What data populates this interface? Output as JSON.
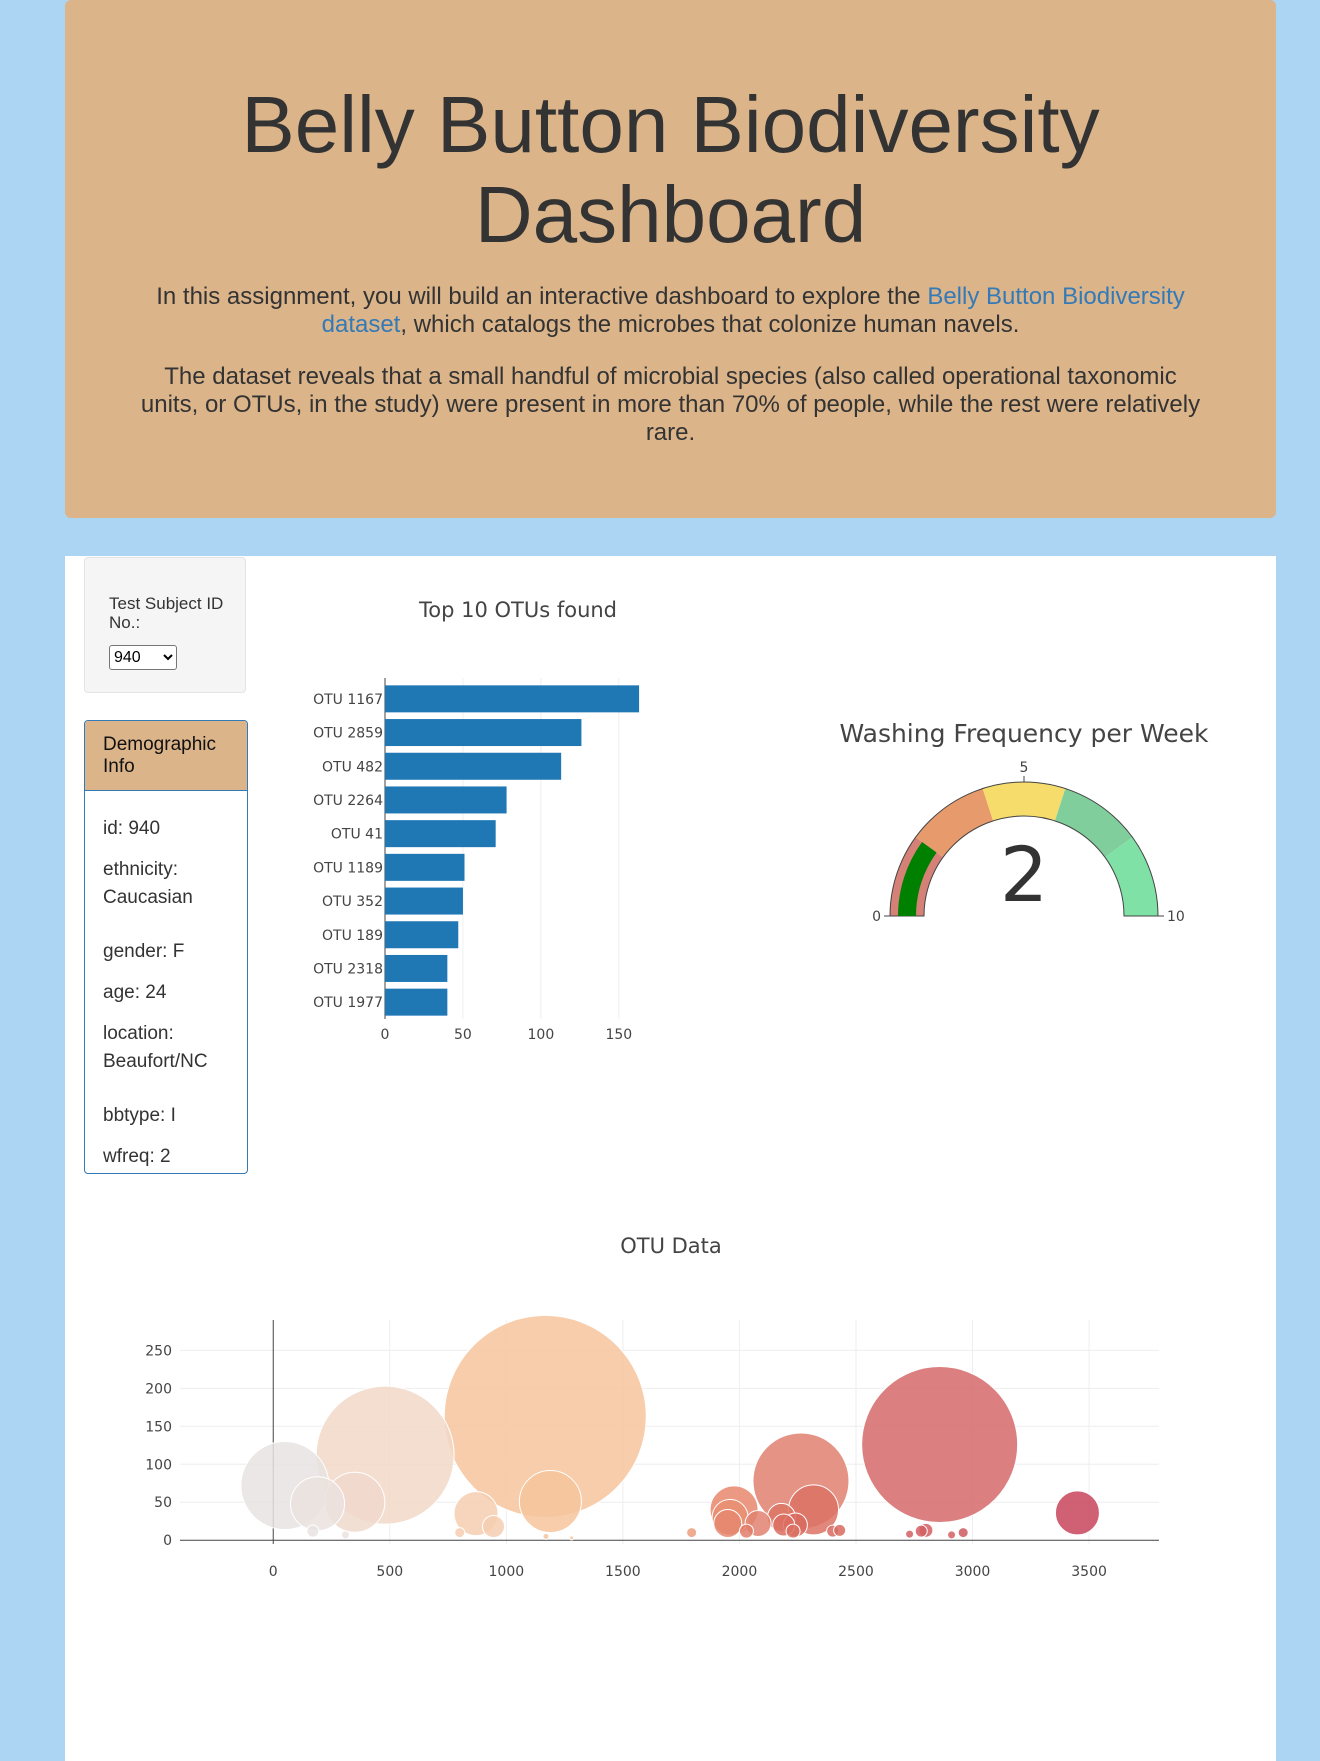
{
  "header": {
    "title": "Belly Button Biodiversity Dashboard",
    "intro_before": "In this assignment, you will build an interactive dashboard to explore the ",
    "intro_link": "Belly Button Biodiversity dataset",
    "intro_after": ", which catalogs the microbes that colonize human navels.",
    "paragraph2": "The dataset reveals that a small handful of microbial species (also called operational taxonomic units, or OTUs, in the study) were present in more than 70% of people, while the rest were relatively rare."
  },
  "selector": {
    "label": "Test Subject ID No.:",
    "selected": "940"
  },
  "demographics": {
    "heading": "Demographic Info",
    "rows": [
      "id: 940",
      "ethnicity: Caucasian",
      "gender: F",
      "age: 24",
      "location: Beaufort/NC",
      "bbtype: I",
      "wfreq: 2"
    ]
  },
  "colors": {
    "bar": "#1f77b4",
    "gauge_needle": "#008000",
    "header_bg": "#dbb48a",
    "page_bg": "#acd5f4"
  },
  "chart_data": [
    {
      "type": "bar",
      "orientation": "horizontal",
      "title": "Top 10 OTUs found",
      "categories": [
        "OTU 1167",
        "OTU 2859",
        "OTU 482",
        "OTU 2264",
        "OTU 41",
        "OTU 1189",
        "OTU 352",
        "OTU 189",
        "OTU 2318",
        "OTU 1977"
      ],
      "values": [
        163,
        126,
        113,
        78,
        71,
        51,
        50,
        47,
        40,
        40
      ],
      "xticks": [
        0,
        50,
        100,
        150
      ],
      "xlim": [
        0,
        170
      ]
    },
    {
      "type": "gauge",
      "title": "Washing Frequency per Week",
      "value": 2,
      "range": [
        0,
        10
      ],
      "tick_labels": [
        "0",
        "5",
        "10"
      ],
      "band_colors": [
        "#d58177",
        "#e79a6c",
        "#f5dc6b",
        "#7fce9b",
        "#7fe1a6"
      ]
    },
    {
      "type": "scatter",
      "subtype": "bubble",
      "title": "OTU Data",
      "xlim": [
        -400,
        3800
      ],
      "ylim": [
        -5,
        290
      ],
      "xticks": [
        0,
        500,
        1000,
        1500,
        2000,
        2500,
        3000,
        3500
      ],
      "yticks": [
        0,
        50,
        100,
        150,
        200,
        250
      ],
      "points": [
        {
          "x": 50,
          "y": 72,
          "r": 44,
          "color": "#e6e3e2"
        },
        {
          "x": 190,
          "y": 48,
          "r": 27,
          "color": "#ebe2de"
        },
        {
          "x": 350,
          "y": 50,
          "r": 30,
          "color": "#f0d9cd"
        },
        {
          "x": 480,
          "y": 112,
          "r": 69,
          "color": "#f2d8c8"
        },
        {
          "x": 170,
          "y": 12,
          "r": 6,
          "color": "#e6e3e2"
        },
        {
          "x": 310,
          "y": 7,
          "r": 4,
          "color": "#ebe2de"
        },
        {
          "x": 870,
          "y": 35,
          "r": 22,
          "color": "#f5ceb0"
        },
        {
          "x": 945,
          "y": 18,
          "r": 11,
          "color": "#f5ceb0"
        },
        {
          "x": 800,
          "y": 10,
          "r": 5,
          "color": "#f5ceb0"
        },
        {
          "x": 1167,
          "y": 163,
          "r": 101,
          "color": "#f6c49c"
        },
        {
          "x": 1189,
          "y": 51,
          "r": 31,
          "color": "#f6c49c"
        },
        {
          "x": 1170,
          "y": 5,
          "r": 3,
          "color": "#f6c49c"
        },
        {
          "x": 1280,
          "y": 3,
          "r": 2,
          "color": "#f6c49c"
        },
        {
          "x": 1795,
          "y": 10,
          "r": 5,
          "color": "#ec9e7c"
        },
        {
          "x": 1977,
          "y": 40,
          "r": 24,
          "color": "#e8876d"
        },
        {
          "x": 1960,
          "y": 30,
          "r": 18,
          "color": "#e98f73"
        },
        {
          "x": 1950,
          "y": 22,
          "r": 14,
          "color": "#e58770"
        },
        {
          "x": 2080,
          "y": 22,
          "r": 13,
          "color": "#e18170"
        },
        {
          "x": 2030,
          "y": 12,
          "r": 7,
          "color": "#e27d6c"
        },
        {
          "x": 2264,
          "y": 78,
          "r": 48,
          "color": "#e0806f"
        },
        {
          "x": 2318,
          "y": 40,
          "r": 25,
          "color": "#dc7264"
        },
        {
          "x": 2180,
          "y": 30,
          "r": 14,
          "color": "#dd7565"
        },
        {
          "x": 2190,
          "y": 20,
          "r": 11,
          "color": "#da6e62"
        },
        {
          "x": 2230,
          "y": 12,
          "r": 7,
          "color": "#db6f62"
        },
        {
          "x": 2240,
          "y": 20,
          "r": 12,
          "color": "#d96b60"
        },
        {
          "x": 2400,
          "y": 12,
          "r": 6,
          "color": "#d86a5f"
        },
        {
          "x": 2430,
          "y": 13,
          "r": 6,
          "color": "#d86a5f"
        },
        {
          "x": 2859,
          "y": 126,
          "r": 78,
          "color": "#d5686a"
        },
        {
          "x": 2780,
          "y": 12,
          "r": 6,
          "color": "#d25f63"
        },
        {
          "x": 2800,
          "y": 13,
          "r": 7,
          "color": "#d25f63"
        },
        {
          "x": 2730,
          "y": 8,
          "r": 4,
          "color": "#d25f63"
        },
        {
          "x": 2910,
          "y": 7,
          "r": 4,
          "color": "#d25f63"
        },
        {
          "x": 2960,
          "y": 10,
          "r": 5,
          "color": "#cd5a60"
        },
        {
          "x": 3450,
          "y": 36,
          "r": 22,
          "color": "#c8445a"
        }
      ]
    }
  ]
}
